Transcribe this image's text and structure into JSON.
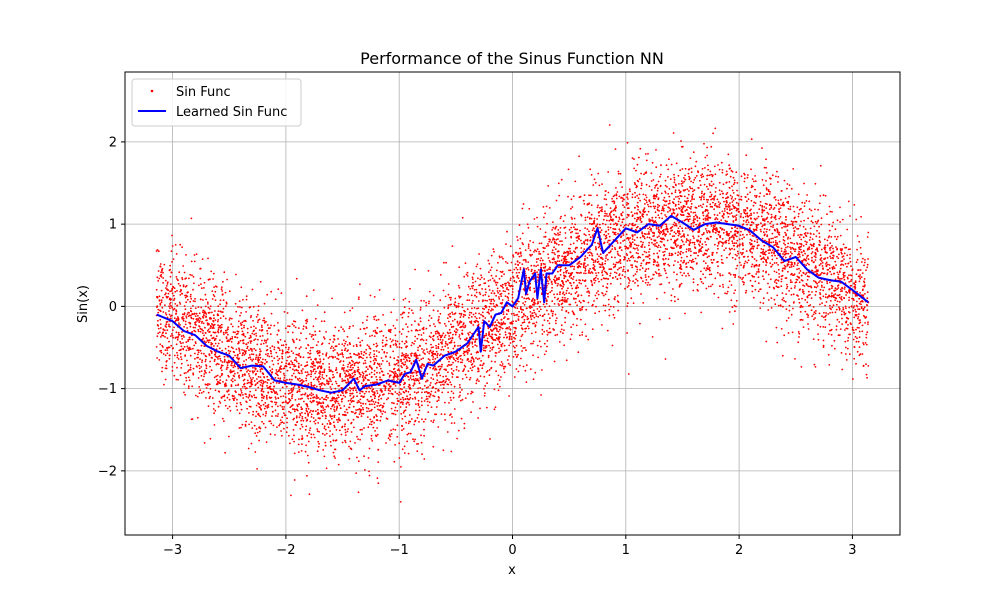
{
  "chart_data": {
    "type": "scatter",
    "title": "Performance of the Sinus Function NN",
    "xlabel": "x",
    "ylabel": "Sin(x)",
    "xlim": [
      -3.42,
      3.42
    ],
    "ylim": [
      -2.78,
      2.85
    ],
    "x_ticks": [
      -3,
      -2,
      -1,
      0,
      1,
      2,
      3
    ],
    "x_tick_labels": [
      "−3",
      "−2",
      "−1",
      "0",
      "1",
      "2",
      "3"
    ],
    "y_ticks": [
      -2,
      -1,
      0,
      1,
      2
    ],
    "y_tick_labels": [
      "−2",
      "−1",
      "0",
      "1",
      "2"
    ],
    "grid": true,
    "legend_position": "top-left",
    "scatter_series": {
      "name": "Sin Func",
      "color": "#ff0000",
      "x_range": [
        -3.1416,
        3.1416
      ],
      "underlying_function": "sin(x)",
      "noise_std": 0.4,
      "count": 8000
    },
    "line_series": {
      "name": "Learned Sin Func",
      "color": "#0000ff",
      "x": [
        -3.14,
        -3.0,
        -2.9,
        -2.8,
        -2.7,
        -2.6,
        -2.5,
        -2.4,
        -2.3,
        -2.2,
        -2.1,
        -2.0,
        -1.9,
        -1.8,
        -1.7,
        -1.6,
        -1.5,
        -1.4,
        -1.35,
        -1.3,
        -1.2,
        -1.1,
        -1.0,
        -0.95,
        -0.9,
        -0.85,
        -0.8,
        -0.75,
        -0.7,
        -0.6,
        -0.5,
        -0.4,
        -0.35,
        -0.3,
        -0.28,
        -0.25,
        -0.2,
        -0.15,
        -0.1,
        -0.05,
        0.0,
        0.05,
        0.1,
        0.12,
        0.15,
        0.2,
        0.22,
        0.25,
        0.28,
        0.3,
        0.35,
        0.4,
        0.5,
        0.6,
        0.7,
        0.75,
        0.8,
        0.9,
        1.0,
        1.1,
        1.2,
        1.3,
        1.4,
        1.5,
        1.6,
        1.7,
        1.8,
        1.9,
        2.0,
        2.1,
        2.2,
        2.3,
        2.4,
        2.5,
        2.6,
        2.7,
        2.8,
        2.9,
        3.0,
        3.14
      ],
      "y": [
        -0.1,
        -0.18,
        -0.3,
        -0.35,
        -0.48,
        -0.55,
        -0.6,
        -0.75,
        -0.72,
        -0.73,
        -0.9,
        -0.93,
        -0.95,
        -0.98,
        -1.02,
        -1.05,
        -1.02,
        -0.88,
        -1.02,
        -0.97,
        -0.95,
        -0.9,
        -0.93,
        -0.82,
        -0.8,
        -0.65,
        -0.88,
        -0.7,
        -0.72,
        -0.6,
        -0.55,
        -0.45,
        -0.35,
        -0.25,
        -0.55,
        -0.18,
        -0.25,
        -0.1,
        -0.08,
        0.05,
        0.0,
        0.1,
        0.45,
        0.15,
        0.3,
        0.4,
        0.1,
        0.45,
        0.05,
        0.4,
        0.4,
        0.5,
        0.5,
        0.6,
        0.75,
        0.95,
        0.65,
        0.8,
        0.95,
        0.9,
        1.0,
        0.98,
        1.1,
        1.02,
        0.93,
        1.0,
        1.02,
        1.0,
        0.98,
        0.92,
        0.8,
        0.72,
        0.55,
        0.6,
        0.45,
        0.35,
        0.32,
        0.3,
        0.2,
        0.05
      ]
    }
  }
}
